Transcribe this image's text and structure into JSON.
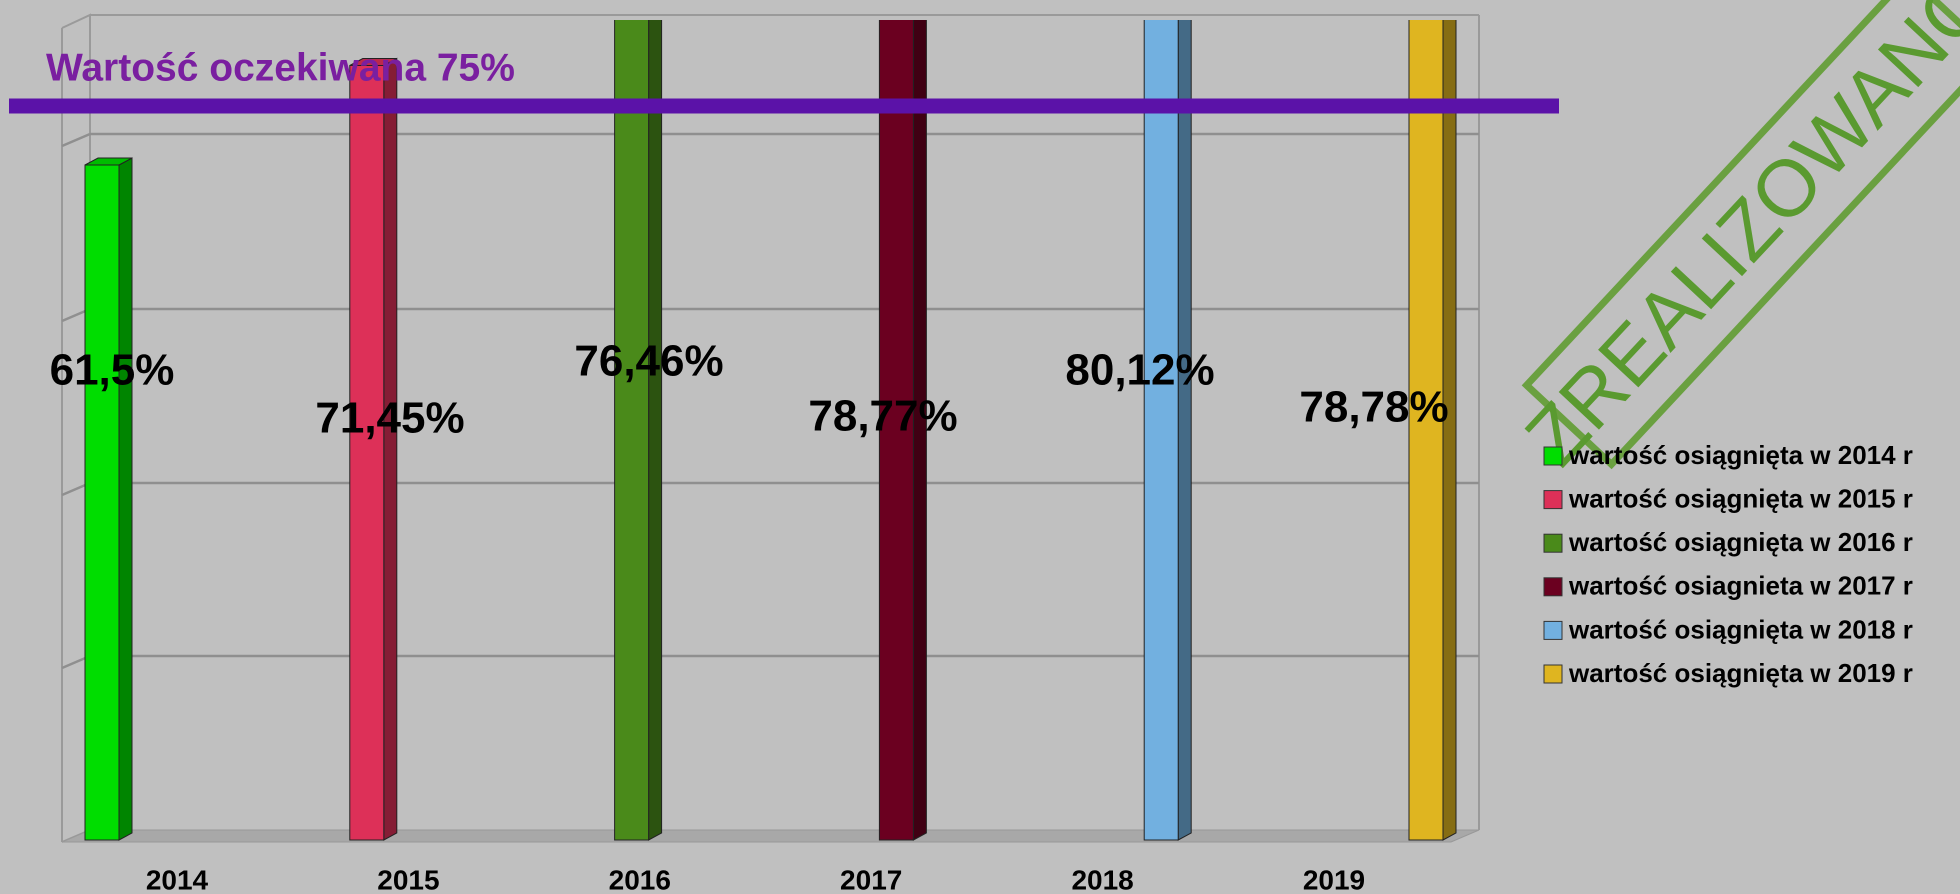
{
  "chart_data": {
    "type": "bar",
    "annotation": "Wartość oczekiwana 75%",
    "stamp": "ZREALIZOWANO",
    "categories": [
      "2014",
      "2015",
      "2016",
      "2017",
      "2018",
      "2019"
    ],
    "values": [
      61.5,
      71.45,
      76.46,
      78.77,
      80.12,
      78.78
    ],
    "value_labels": [
      "61,5%",
      "71,45%",
      "76,46%",
      "78,77%",
      "80,12%",
      "78,78%"
    ],
    "colors": [
      "#00dd00",
      "#dd3058",
      "#4a8a1a",
      "#6b0020",
      "#72b0e0",
      "#dfb520"
    ],
    "legend": [
      "wartość osiągnięta w 2014 r",
      "wartość osiągnięta w 2015 r",
      "wartość osiągnięta w 2016 r",
      "wartość osiagnieta w 2017 r",
      "wartość osiągnięta w 2018 r",
      "wartość osiągnięta w 2019 r"
    ],
    "ylim": [
      -6,
      76
    ]
  }
}
